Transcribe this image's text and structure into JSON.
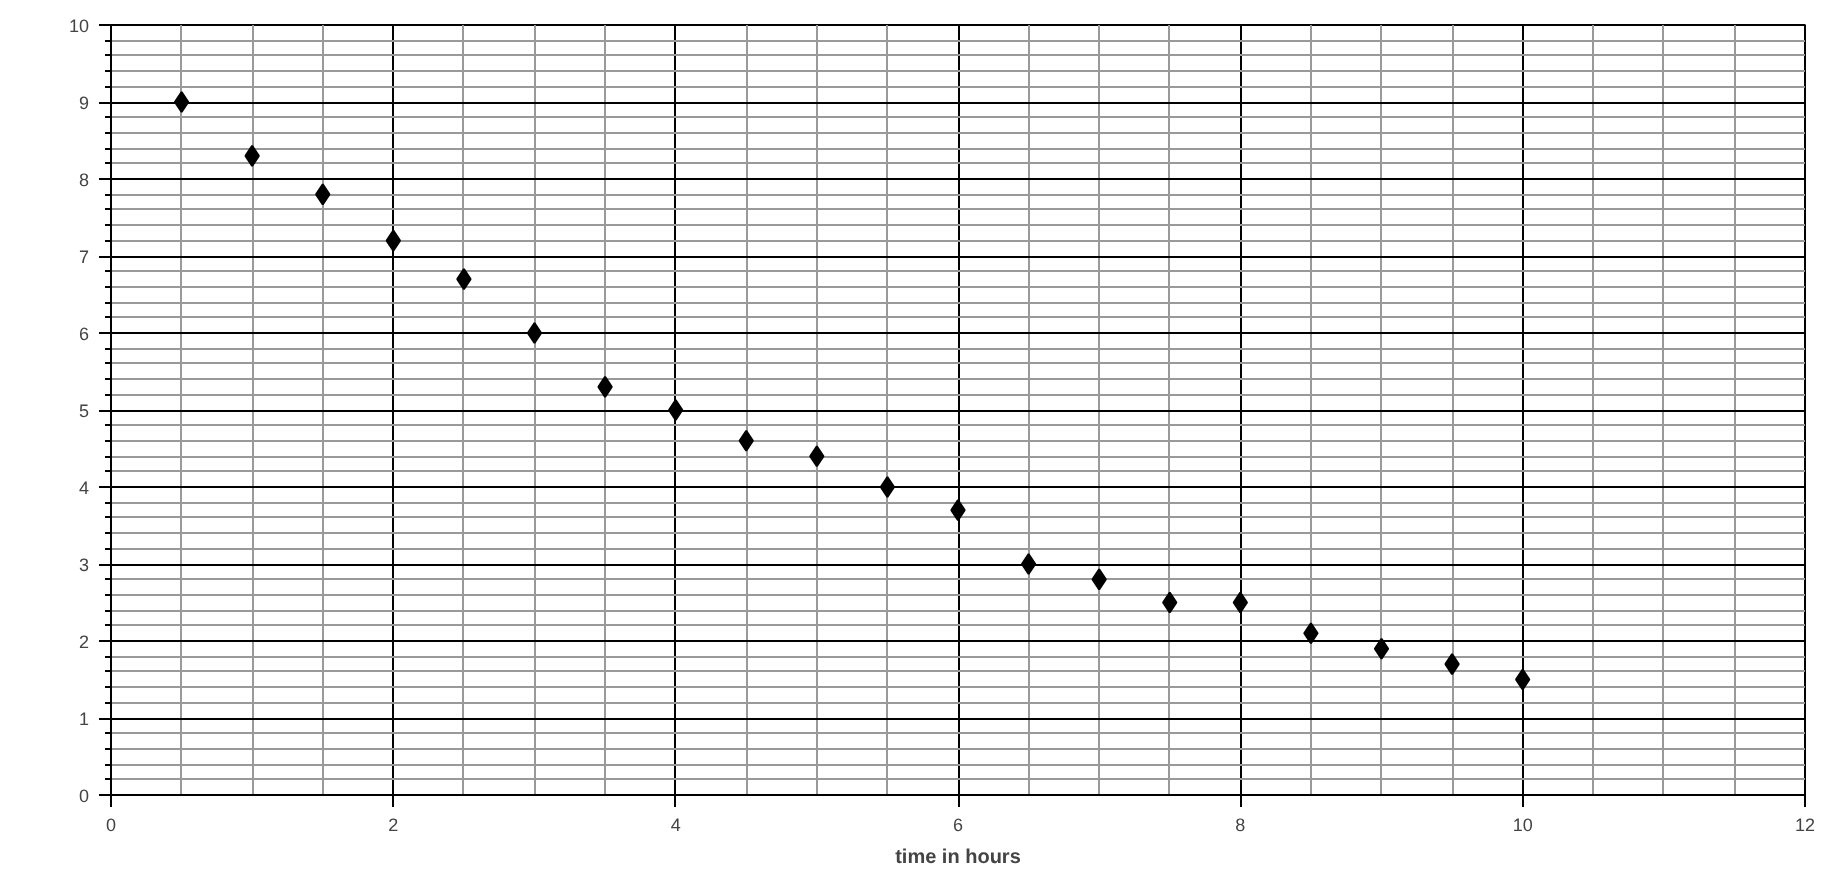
{
  "chart_data": {
    "type": "scatter",
    "xlabel": "time in hours",
    "x": [
      0.5,
      1,
      1.5,
      2,
      2.5,
      3,
      3.5,
      4,
      4.5,
      5,
      5.5,
      6,
      6.5,
      7,
      7.5,
      8,
      8.5,
      9,
      9.5,
      10
    ],
    "series": [
      {
        "color": "#000000",
        "values": [
          9,
          8.3,
          7.8,
          7.2,
          6.7,
          6,
          5.3,
          5,
          4.6,
          4.4,
          4,
          3.7,
          3,
          2.8,
          2.5,
          2.5,
          2.1,
          1.9,
          1.7,
          1.5
        ]
      }
    ],
    "xlim": [
      0,
      12
    ],
    "xticks": [
      0,
      2,
      4,
      6,
      8,
      10,
      12
    ],
    "ylim": [
      0,
      10
    ],
    "yticks": [
      0,
      1,
      2,
      3,
      4,
      5,
      6,
      7,
      8,
      9,
      10
    ],
    "grid": true,
    "marker": "diamond"
  }
}
